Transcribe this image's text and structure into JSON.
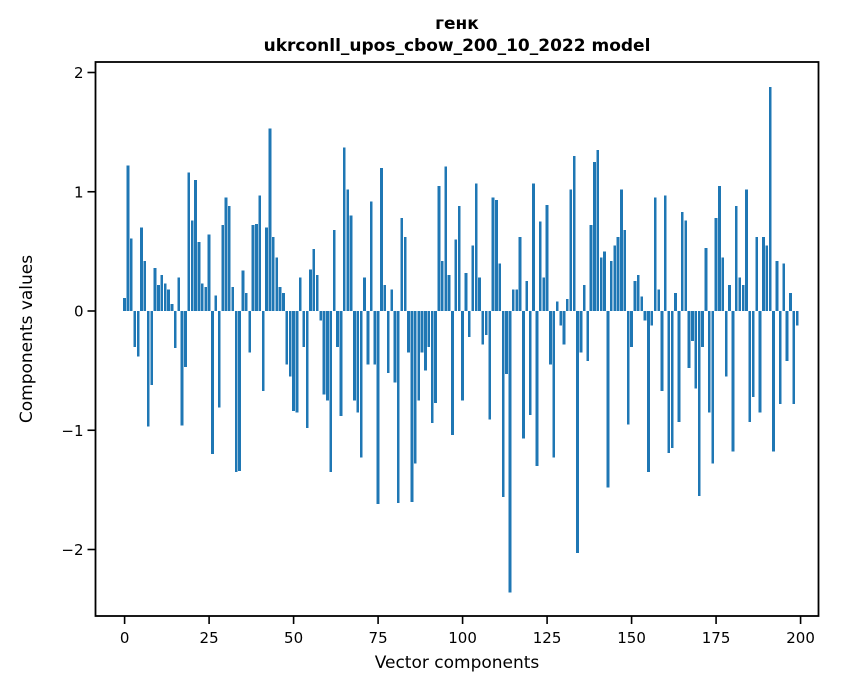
{
  "chart_data": {
    "type": "bar",
    "title": "генк",
    "subtitle": "ukrconll_upos_cbow_200_10_2022 model",
    "xlabel": "Vector components",
    "ylabel": "Components values",
    "n_components": 200,
    "bar_color": "#1f77b4",
    "x_ticks": [
      0,
      25,
      50,
      75,
      100,
      125,
      150,
      175,
      200
    ],
    "y_ticks": [
      2,
      1,
      0,
      -1,
      -2
    ],
    "xlim": [
      -9,
      206
    ],
    "ylim": [
      -2.57,
      2.12
    ],
    "grid": false,
    "legend": null,
    "values": [
      0.11,
      1.22,
      0.61,
      -0.3,
      -0.38,
      0.7,
      0.42,
      -0.97,
      -0.62,
      0.36,
      0.22,
      0.3,
      0.23,
      0.18,
      0.06,
      -0.31,
      0.28,
      -0.96,
      -0.47,
      1.16,
      0.76,
      1.1,
      0.58,
      0.23,
      0.2,
      0.64,
      -1.2,
      0.13,
      -0.81,
      0.72,
      0.95,
      0.88,
      0.2,
      -1.35,
      -1.34,
      0.34,
      0.15,
      -0.35,
      0.72,
      0.73,
      0.97,
      -0.67,
      0.7,
      1.53,
      0.62,
      0.45,
      0.2,
      0.15,
      -0.45,
      -0.55,
      -0.84,
      -0.85,
      0.28,
      -0.3,
      -0.98,
      0.35,
      0.52,
      0.3,
      -0.08,
      -0.7,
      -0.75,
      -1.35,
      0.68,
      -0.3,
      -0.88,
      1.37,
      1.02,
      0.8,
      -0.75,
      -0.85,
      -1.23,
      0.28,
      -0.45,
      0.92,
      -0.45,
      -1.62,
      1.2,
      0.22,
      -0.52,
      0.18,
      -0.6,
      -1.61,
      0.78,
      0.62,
      -0.35,
      -1.6,
      -1.28,
      -0.75,
      -0.35,
      -0.5,
      -0.3,
      -0.94,
      -0.77,
      1.05,
      0.42,
      1.21,
      0.3,
      -1.04,
      0.6,
      0.88,
      -0.75,
      0.32,
      -0.22,
      0.55,
      1.07,
      0.28,
      -0.28,
      -0.2,
      -0.91,
      0.95,
      0.93,
      0.4,
      -1.56,
      -0.53,
      -2.36,
      0.18,
      0.18,
      0.62,
      -1.07,
      0.25,
      -0.87,
      1.07,
      -1.3,
      0.75,
      0.28,
      0.89,
      -0.45,
      -1.23,
      0.08,
      -0.12,
      -0.28,
      0.1,
      1.02,
      1.3,
      -2.03,
      -0.35,
      0.22,
      -0.42,
      0.72,
      1.25,
      1.35,
      0.45,
      0.5,
      -1.48,
      0.42,
      0.55,
      0.62,
      1.02,
      0.68,
      -0.95,
      -0.3,
      0.25,
      0.3,
      0.12,
      -0.08,
      -1.35,
      -0.12,
      0.95,
      0.18,
      -0.67,
      0.97,
      -1.19,
      -1.15,
      0.15,
      -0.93,
      0.83,
      0.76,
      -0.48,
      -0.25,
      -0.65,
      -1.55,
      -0.3,
      0.53,
      -0.85,
      -1.28,
      0.78,
      1.05,
      0.45,
      -0.55,
      0.22,
      -1.18,
      0.88,
      0.28,
      0.22,
      1.02,
      -0.93,
      -0.72,
      0.62,
      -0.85,
      0.62,
      0.55,
      1.88,
      -1.18,
      0.42,
      -0.78,
      0.4,
      -0.42,
      0.15,
      -0.78,
      -0.12
    ]
  }
}
